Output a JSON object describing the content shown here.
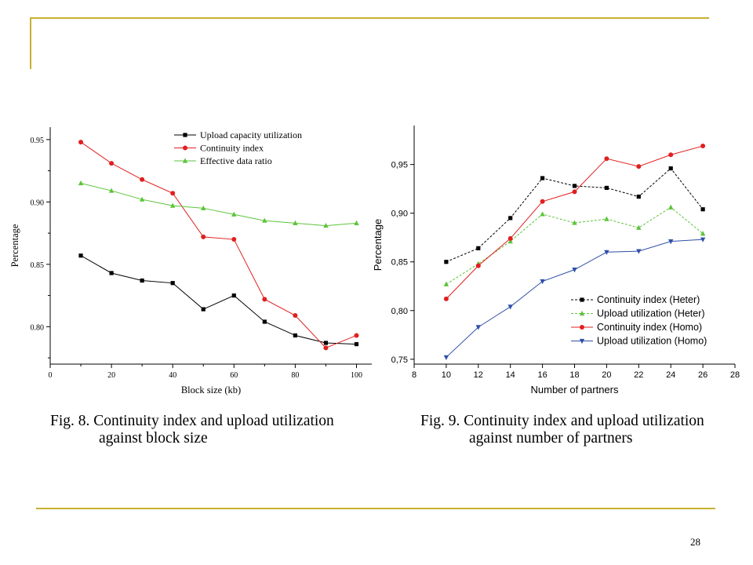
{
  "page": {
    "number": "28"
  },
  "captions": {
    "left_line1": "Fig. 8. Continuity index and upload utilization",
    "left_line2": "against block size",
    "right_line1": "Fig. 9. Continuity index and upload utilization",
    "right_line2": "against number of partners"
  },
  "colors": {
    "rule": "#c8b030",
    "black": "#000000",
    "red": "#e02020",
    "green": "#5cc43a",
    "blue": "#2f4fa8"
  },
  "chart_data": [
    {
      "type": "line",
      "title": "",
      "xlabel": "Block size (kb)",
      "ylabel": "Percentage",
      "xlim": [
        0,
        105
      ],
      "ylim": [
        0.77,
        0.96
      ],
      "xticks": [
        0,
        20,
        40,
        60,
        80,
        100
      ],
      "yticks": [
        0.8,
        0.85,
        0.9,
        0.95
      ],
      "ytick_labels": [
        "0.80",
        "0.85",
        "0.90",
        "0.95"
      ],
      "grid": false,
      "legend_position": "top-right",
      "x": [
        10,
        20,
        30,
        40,
        50,
        60,
        70,
        80,
        90,
        100
      ],
      "series": [
        {
          "name": "Upload capacity utilization",
          "color": "#000000",
          "marker": "square",
          "dash": false,
          "values": [
            0.857,
            0.843,
            0.837,
            0.835,
            0.814,
            0.825,
            0.804,
            0.793,
            0.787,
            0.786
          ]
        },
        {
          "name": "Continuity index",
          "color": "#e02020",
          "marker": "circle",
          "dash": false,
          "values": [
            0.948,
            0.931,
            0.918,
            0.907,
            0.872,
            0.87,
            0.822,
            0.809,
            0.783,
            0.793
          ]
        },
        {
          "name": "Effective data ratio",
          "color": "#5cc43a",
          "marker": "triangle-up",
          "dash": false,
          "values": [
            0.915,
            0.909,
            0.902,
            0.897,
            0.895,
            0.89,
            0.885,
            0.883,
            0.881,
            0.883
          ]
        }
      ]
    },
    {
      "type": "line",
      "title": "",
      "xlabel": "Number of partners",
      "ylabel": "Percentage",
      "xlim": [
        8,
        28
      ],
      "ylim": [
        0.745,
        0.99
      ],
      "xticks": [
        8,
        10,
        12,
        14,
        16,
        18,
        20,
        22,
        24,
        26,
        28
      ],
      "yticks": [
        0.75,
        0.8,
        0.85,
        0.9,
        0.95
      ],
      "ytick_labels": [
        "0,75",
        "0,80",
        "0,85",
        "0,90",
        "0,95"
      ],
      "grid": false,
      "legend_position": "bottom-right",
      "x": [
        10,
        12,
        14,
        16,
        18,
        20,
        22,
        24,
        26
      ],
      "series": [
        {
          "name": "Continuity index (Heter)",
          "color": "#000000",
          "marker": "square",
          "dash": true,
          "values": [
            0.85,
            0.864,
            0.895,
            0.936,
            0.928,
            0.926,
            0.917,
            0.946,
            0.904
          ]
        },
        {
          "name": "Upload utilization (Heter)",
          "color": "#5cc43a",
          "marker": "triangle-up",
          "dash": true,
          "values": [
            0.827,
            0.848,
            0.871,
            0.899,
            0.89,
            0.894,
            0.885,
            0.906,
            0.879
          ]
        },
        {
          "name": "Continuity index (Homo)",
          "color": "#e02020",
          "marker": "circle",
          "dash": false,
          "values": [
            0.812,
            0.846,
            0.874,
            0.912,
            0.922,
            0.956,
            0.948,
            0.96,
            0.969
          ]
        },
        {
          "name": "Upload utilization (Homo)",
          "color": "#2f4fa8",
          "marker": "triangle-down",
          "dash": false,
          "values": [
            0.752,
            0.783,
            0.804,
            0.83,
            0.842,
            0.86,
            0.861,
            0.871,
            0.873
          ]
        }
      ]
    }
  ]
}
